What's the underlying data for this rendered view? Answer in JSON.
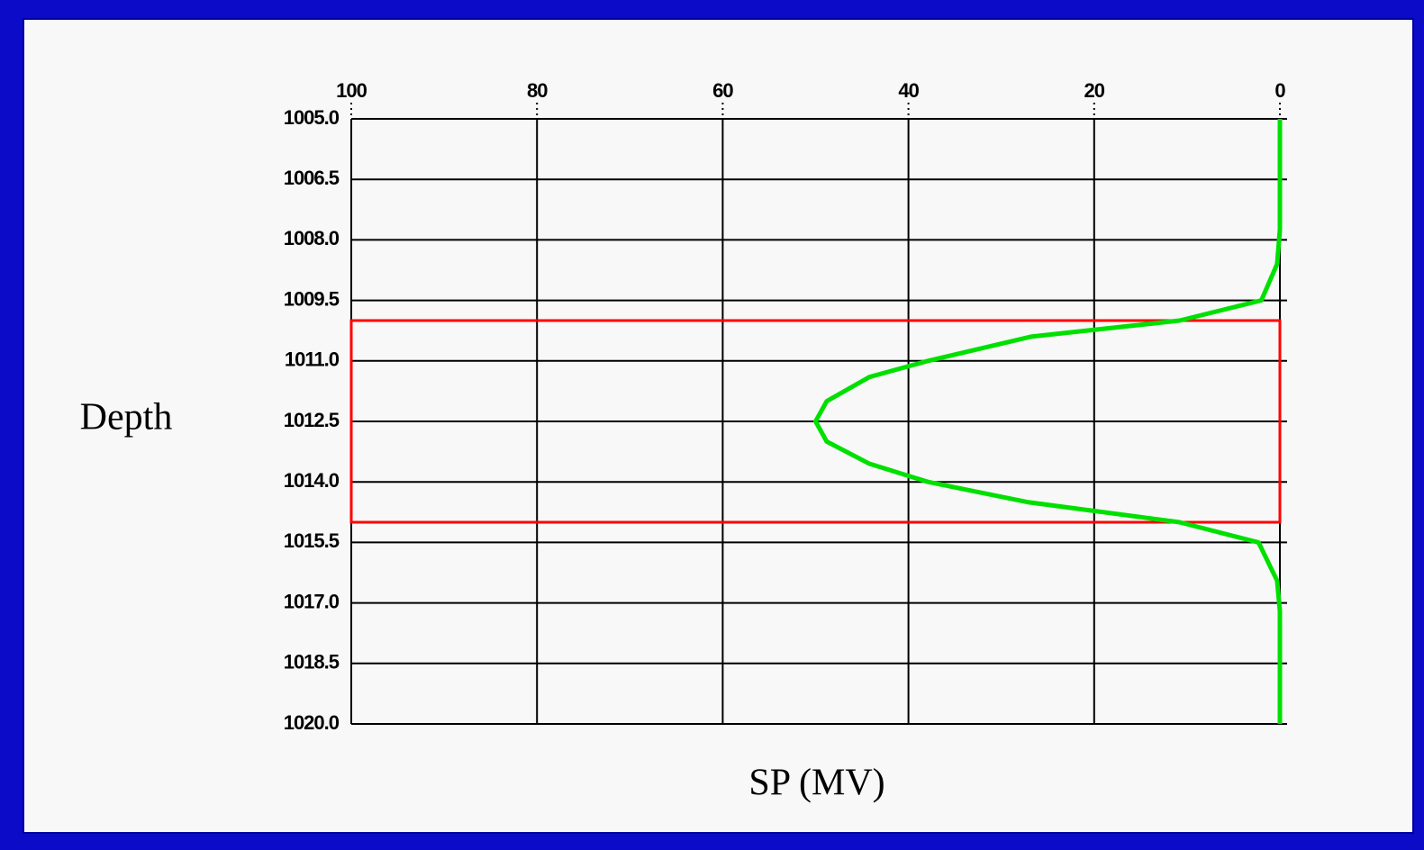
{
  "chart_data": {
    "type": "line",
    "x_label": "SP (MV)",
    "y_label": "Depth",
    "xlim": [
      100,
      0
    ],
    "xticks": [
      100,
      80,
      60,
      40,
      20,
      0
    ],
    "ylim": [
      1005,
      1020
    ],
    "yticks": [
      {
        "value": 1005,
        "label": "1005.0"
      },
      1006.5,
      {
        "value": 1008,
        "label": "1008.0"
      },
      1009.5,
      {
        "value": 1011,
        "label": "1011.0"
      },
      1012.5,
      {
        "value": 1014,
        "label": "1014.0"
      },
      1015.5,
      {
        "value": 1017,
        "label": "1017.0"
      },
      1018.5,
      {
        "value": 1020,
        "label": "1020.0"
      }
    ],
    "grid": true,
    "x": [
      0,
      0,
      0.3,
      2,
      10.8,
      26.8,
      37.9,
      44.2,
      48.8,
      50,
      48.8,
      44.2,
      37.9,
      27.2,
      10.8,
      2.3,
      0.3,
      0,
      0
    ],
    "series": [
      {
        "color": "#00e000",
        "values": [
          1005,
          1007.75,
          1008.6,
          1009.5,
          1010,
          1010.4,
          1011,
          1011.4,
          1012,
          1012.5,
          1013,
          1013.55,
          1014,
          1014.5,
          1015,
          1015.5,
          1016.45,
          1017.2,
          1020
        ]
      }
    ],
    "zone": {
      "top": 1010,
      "bottom": 1015,
      "color": "#ff0000"
    }
  }
}
